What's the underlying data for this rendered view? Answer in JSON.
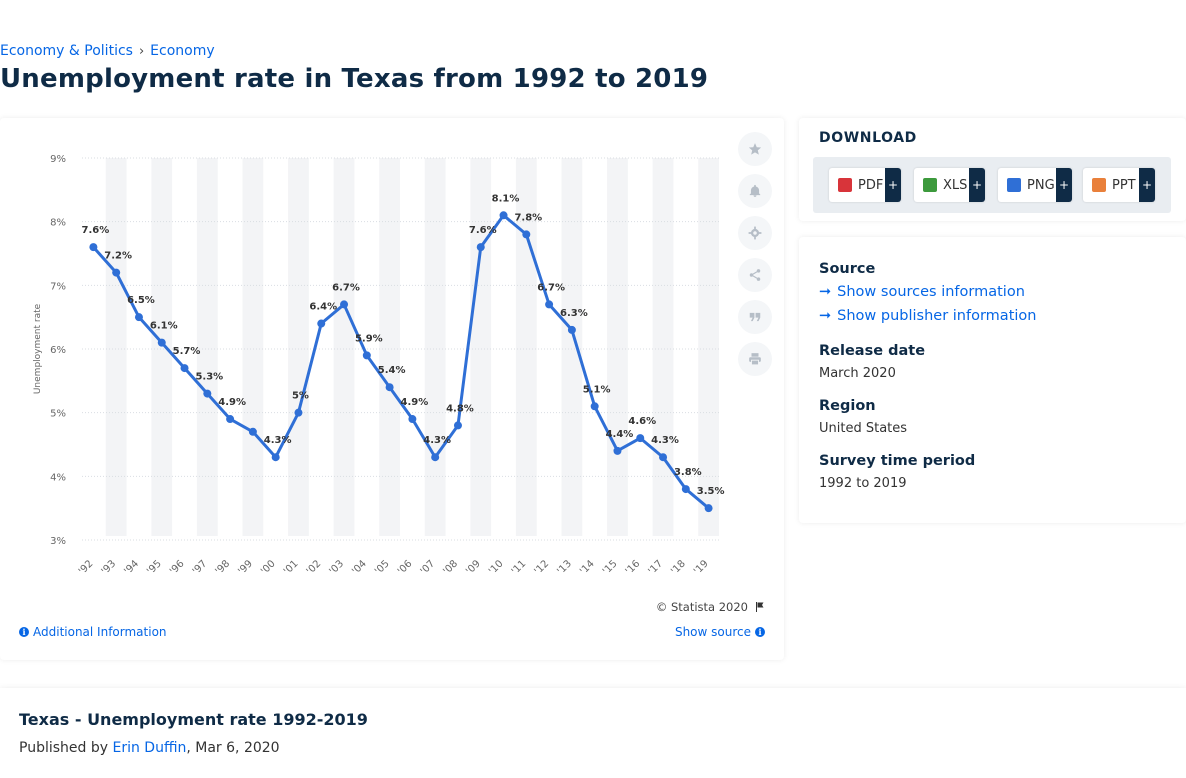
{
  "breadcrumb": {
    "items": [
      "Economy & Politics",
      "Economy"
    ],
    "separator": "›"
  },
  "page": {
    "title": "Unemployment rate in Texas from 1992 to 2019"
  },
  "chart_data": {
    "type": "line",
    "title": "",
    "xlabel": "",
    "ylabel": "Unemployment rate",
    "categories": [
      "'92",
      "'93",
      "'94",
      "'95",
      "'96",
      "'97",
      "'98",
      "'99",
      "'00",
      "'01",
      "'02",
      "'03",
      "'04",
      "'05",
      "'06",
      "'07",
      "'08",
      "'09",
      "'10",
      "'11",
      "'12",
      "'13",
      "'14",
      "'15",
      "'16",
      "'17",
      "'18",
      "'19"
    ],
    "series": [
      {
        "values": [
          7.6,
          7.2,
          6.5,
          6.1,
          5.7,
          5.3,
          4.9,
          4.7,
          4.3,
          5.0,
          6.4,
          6.7,
          5.9,
          5.4,
          4.9,
          4.3,
          4.8,
          7.6,
          8.1,
          7.8,
          6.7,
          6.3,
          5.1,
          4.4,
          4.6,
          4.3,
          3.8,
          3.5
        ]
      }
    ],
    "data_labels": [
      "7.6%",
      "7.2%",
      "6.5%",
      "6.1%",
      "5.7%",
      "5.3%",
      "4.9%",
      "",
      "4.3%",
      "5%",
      "6.4%",
      "6.7%",
      "5.9%",
      "5.4%",
      "4.9%",
      "4.3%",
      "4.8%",
      "7.6%",
      "8.1%",
      "7.8%",
      "6.7%",
      "6.3%",
      "5.1%",
      "4.4%",
      "4.6%",
      "4.3%",
      "3.8%",
      "3.5%"
    ],
    "ylim": [
      3,
      9
    ],
    "yticks": [
      "3%",
      "4%",
      "5%",
      "6%",
      "7%",
      "8%",
      "9%"
    ],
    "grid": true,
    "line_color": "#2f6fd6",
    "copyright": "© Statista 2020",
    "additional_info_label": "Additional Information",
    "show_source_label": "Show source"
  },
  "tools": [
    "star-icon",
    "bell-icon",
    "gear-icon",
    "share-icon",
    "quote-icon",
    "print-icon"
  ],
  "download": {
    "title": "DOWNLOAD",
    "buttons": [
      {
        "label": "PDF",
        "plus": "+",
        "color": "#d8343a"
      },
      {
        "label": "XLS",
        "plus": "+",
        "color": "#3d9a3d"
      },
      {
        "label": "PNG",
        "plus": "+",
        "color": "#2f6fd6"
      },
      {
        "label": "PPT",
        "plus": "+",
        "color": "#e9803b"
      }
    ]
  },
  "info": {
    "source_title": "Source",
    "show_sources": "Show sources information",
    "show_publisher": "Show publisher information",
    "release_title": "Release date",
    "release_value": "March 2020",
    "region_title": "Region",
    "region_value": "United States",
    "survey_title": "Survey time period",
    "survey_value": "1992 to 2019"
  },
  "description": {
    "title": "Texas - Unemployment rate 1992-2019",
    "published_by": "Published by",
    "author": "Erin Duffin",
    "date": ", Mar 6, 2020"
  }
}
